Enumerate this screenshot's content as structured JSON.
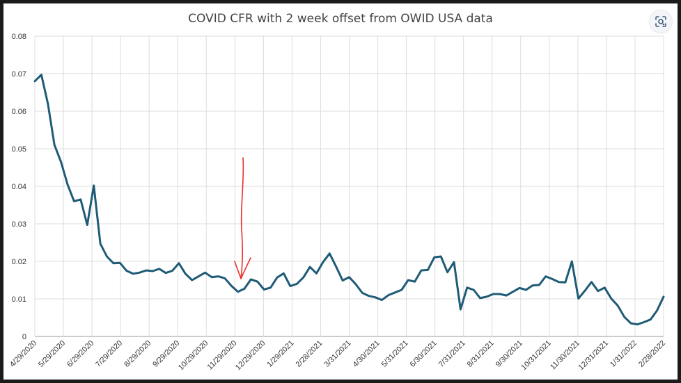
{
  "chart_data": {
    "type": "line",
    "title": "COVID CFR with 2 week offset from OWID USA data",
    "xlabel": "",
    "ylabel": "",
    "ylim": [
      0,
      0.08
    ],
    "yticks": [
      "0",
      "0.01",
      "0.02",
      "0.03",
      "0.04",
      "0.05",
      "0.06",
      "0.07",
      "0.08"
    ],
    "xtick_labels": [
      "4/29/2020",
      "5/29/2020",
      "6/29/2020",
      "7/29/2020",
      "8/29/2020",
      "9/29/2020",
      "10/29/2020",
      "11/29/2020",
      "12/29/2020",
      "1/29/2021",
      "2/28/2021",
      "3/31/2021",
      "4/30/2021",
      "5/31/2021",
      "6/30/2021",
      "7/31/2021",
      "8/31/2021",
      "9/30/2021",
      "10/31/2021",
      "11/30/2021",
      "12/31/2021",
      "1/31/2022",
      "2/28/2022"
    ],
    "grid": true,
    "line_color": "#1f5b76",
    "annotation_arrow_color": "#e8302a",
    "series": [
      {
        "values": [
          0.068,
          0.0697,
          0.062,
          0.051,
          0.0465,
          0.0405,
          0.036,
          0.0365,
          0.0297,
          0.0402,
          0.0247,
          0.0213,
          0.0195,
          0.0196,
          0.0175,
          0.0167,
          0.017,
          0.0176,
          0.0174,
          0.018,
          0.0169,
          0.0175,
          0.0195,
          0.0167,
          0.015,
          0.016,
          0.017,
          0.0158,
          0.016,
          0.0155,
          0.0135,
          0.0119,
          0.0127,
          0.0152,
          0.0146,
          0.0125,
          0.013,
          0.0157,
          0.0168,
          0.0134,
          0.014,
          0.0157,
          0.0185,
          0.0168,
          0.0198,
          0.0221,
          0.0186,
          0.0149,
          0.0158,
          0.0139,
          0.0116,
          0.0108,
          0.0104,
          0.0097,
          0.011,
          0.0117,
          0.0124,
          0.015,
          0.0146,
          0.0176,
          0.0177,
          0.0211,
          0.0213,
          0.0171,
          0.0198,
          0.0072,
          0.013,
          0.0124,
          0.0102,
          0.0106,
          0.0113,
          0.0113,
          0.0109,
          0.0119,
          0.0129,
          0.0124,
          0.0136,
          0.0137,
          0.016,
          0.0153,
          0.0145,
          0.0144,
          0.02,
          0.0101,
          0.0122,
          0.0145,
          0.0121,
          0.013,
          0.0101,
          0.0082,
          0.0052,
          0.0035,
          0.0032,
          0.0038,
          0.0045,
          0.0069,
          0.0106
        ]
      }
    ]
  }
}
